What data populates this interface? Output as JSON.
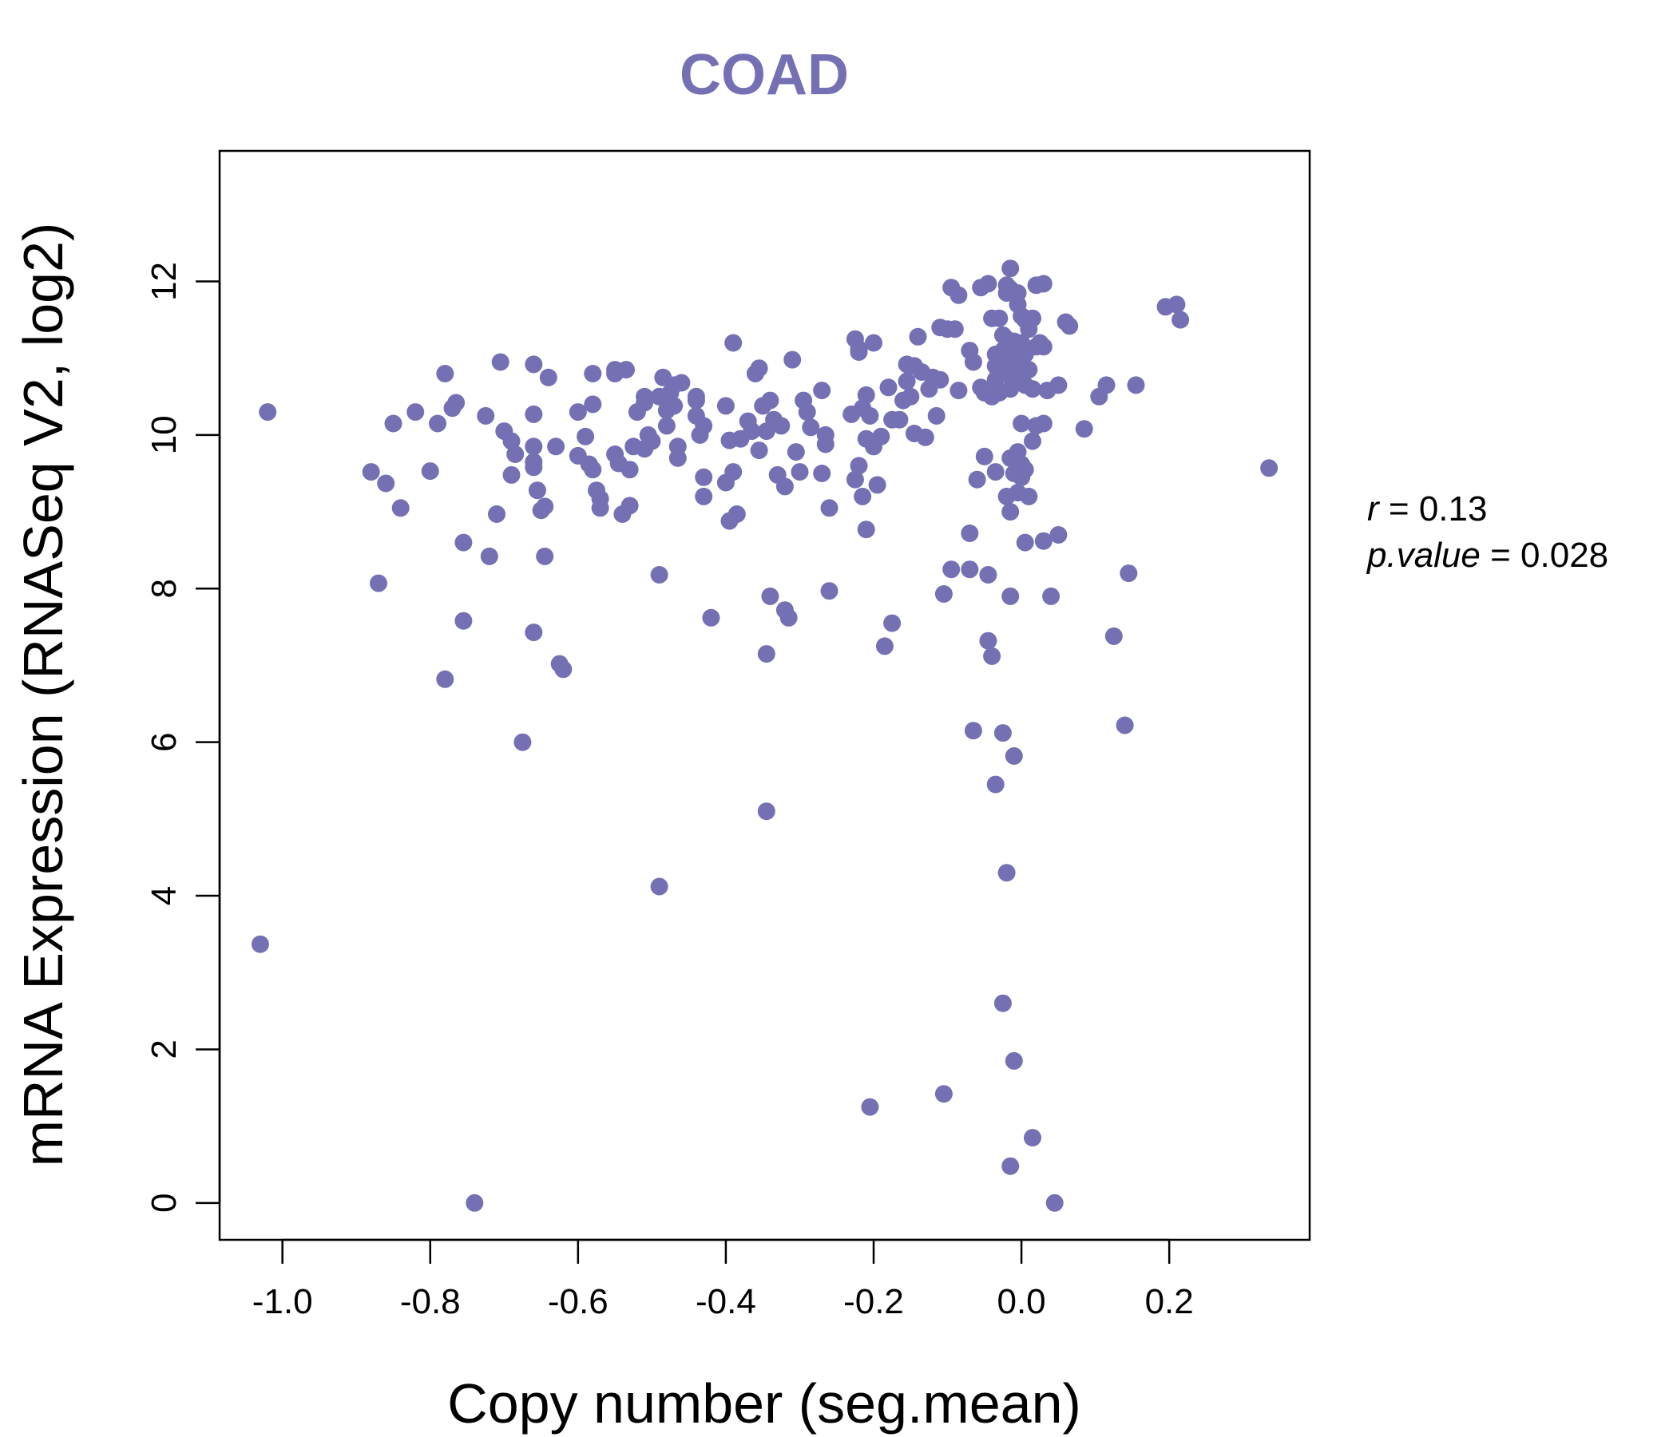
{
  "chart_data": {
    "type": "scatter",
    "title": "COAD",
    "xlabel": "Copy number (seg.mean)",
    "ylabel": "mRNA Expression (RNASeq V2, log2)",
    "xlim": [
      -1.085,
      0.39
    ],
    "ylim": [
      -0.48,
      13.7
    ],
    "xticks": [
      -1.0,
      -0.8,
      -0.6,
      -0.4,
      -0.2,
      0.0,
      0.2
    ],
    "xtick_labels": [
      "-1.0",
      "-0.8",
      "-0.6",
      "-0.4",
      "-0.2",
      "0.0",
      "0.2"
    ],
    "yticks": [
      0,
      2,
      4,
      6,
      8,
      10,
      12
    ],
    "ytick_labels": [
      "0",
      "2",
      "4",
      "6",
      "8",
      "10",
      "12"
    ],
    "grid": false,
    "stats": {
      "r_label": "r",
      "r_value": "0.13",
      "p_label": "p.value",
      "p_value": "0.028"
    },
    "color": "#7570b3",
    "points": [
      [
        -1.02,
        10.3
      ],
      [
        -1.03,
        3.37
      ],
      [
        -0.88,
        9.52
      ],
      [
        -0.87,
        8.07
      ],
      [
        -0.86,
        9.37
      ],
      [
        -0.85,
        10.15
      ],
      [
        -0.84,
        9.05
      ],
      [
        -0.82,
        10.3
      ],
      [
        -0.8,
        9.53
      ],
      [
        -0.79,
        10.15
      ],
      [
        -0.78,
        10.8
      ],
      [
        -0.78,
        6.82
      ],
      [
        -0.77,
        10.35
      ],
      [
        -0.765,
        10.42
      ],
      [
        -0.755,
        8.6
      ],
      [
        -0.755,
        7.58
      ],
      [
        -0.74,
        0.0
      ],
      [
        -0.725,
        10.25
      ],
      [
        -0.72,
        8.42
      ],
      [
        -0.71,
        8.97
      ],
      [
        -0.705,
        10.95
      ],
      [
        -0.7,
        10.05
      ],
      [
        -0.69,
        9.92
      ],
      [
        -0.69,
        9.48
      ],
      [
        -0.685,
        9.75
      ],
      [
        -0.675,
        6.0
      ],
      [
        -0.66,
        10.92
      ],
      [
        -0.66,
        10.27
      ],
      [
        -0.66,
        9.85
      ],
      [
        -0.66,
        9.65
      ],
      [
        -0.66,
        9.58
      ],
      [
        -0.66,
        7.43
      ],
      [
        -0.655,
        9.28
      ],
      [
        -0.65,
        9.02
      ],
      [
        -0.645,
        9.07
      ],
      [
        -0.645,
        8.42
      ],
      [
        -0.64,
        10.75
      ],
      [
        -0.63,
        9.85
      ],
      [
        -0.625,
        7.02
      ],
      [
        -0.62,
        6.95
      ],
      [
        -0.6,
        10.3
      ],
      [
        -0.6,
        9.73
      ],
      [
        -0.59,
        9.98
      ],
      [
        -0.585,
        9.62
      ],
      [
        -0.58,
        9.55
      ],
      [
        -0.58,
        10.8
      ],
      [
        -0.58,
        10.4
      ],
      [
        -0.575,
        9.28
      ],
      [
        -0.57,
        9.17
      ],
      [
        -0.57,
        9.05
      ],
      [
        -0.55,
        10.85
      ],
      [
        -0.55,
        10.8
      ],
      [
        -0.55,
        9.75
      ],
      [
        -0.545,
        9.63
      ],
      [
        -0.54,
        8.97
      ],
      [
        -0.535,
        10.85
      ],
      [
        -0.53,
        9.55
      ],
      [
        -0.53,
        9.08
      ],
      [
        -0.525,
        9.85
      ],
      [
        -0.52,
        10.3
      ],
      [
        -0.51,
        10.5
      ],
      [
        -0.51,
        10.42
      ],
      [
        -0.51,
        9.82
      ],
      [
        -0.505,
        10.0
      ],
      [
        -0.5,
        9.92
      ],
      [
        -0.49,
        10.5
      ],
      [
        -0.49,
        8.18
      ],
      [
        -0.49,
        4.12
      ],
      [
        -0.485,
        10.75
      ],
      [
        -0.48,
        10.32
      ],
      [
        -0.48,
        10.12
      ],
      [
        -0.475,
        10.55
      ],
      [
        -0.47,
        10.65
      ],
      [
        -0.47,
        10.38
      ],
      [
        -0.465,
        9.85
      ],
      [
        -0.465,
        9.7
      ],
      [
        -0.46,
        10.68
      ],
      [
        -0.44,
        10.45
      ],
      [
        -0.44,
        10.5
      ],
      [
        -0.44,
        10.25
      ],
      [
        -0.435,
        10.0
      ],
      [
        -0.43,
        9.45
      ],
      [
        -0.43,
        9.2
      ],
      [
        -0.43,
        10.12
      ],
      [
        -0.42,
        7.62
      ],
      [
        -0.4,
        10.38
      ],
      [
        -0.4,
        9.38
      ],
      [
        -0.395,
        9.93
      ],
      [
        -0.395,
        8.88
      ],
      [
        -0.39,
        11.2
      ],
      [
        -0.39,
        9.52
      ],
      [
        -0.385,
        8.97
      ],
      [
        -0.38,
        9.95
      ],
      [
        -0.37,
        10.18
      ],
      [
        -0.365,
        10.05
      ],
      [
        -0.36,
        10.8
      ],
      [
        -0.355,
        10.87
      ],
      [
        -0.355,
        9.8
      ],
      [
        -0.35,
        10.38
      ],
      [
        -0.345,
        10.05
      ],
      [
        -0.345,
        7.15
      ],
      [
        -0.345,
        5.1
      ],
      [
        -0.34,
        10.45
      ],
      [
        -0.34,
        7.9
      ],
      [
        -0.335,
        10.2
      ],
      [
        -0.33,
        9.48
      ],
      [
        -0.325,
        10.12
      ],
      [
        -0.32,
        9.33
      ],
      [
        -0.32,
        7.72
      ],
      [
        -0.315,
        7.62
      ],
      [
        -0.31,
        10.98
      ],
      [
        -0.305,
        9.78
      ],
      [
        -0.3,
        9.52
      ],
      [
        -0.295,
        10.45
      ],
      [
        -0.29,
        10.3
      ],
      [
        -0.285,
        10.1
      ],
      [
        -0.27,
        10.58
      ],
      [
        -0.27,
        9.5
      ],
      [
        -0.265,
        10.0
      ],
      [
        -0.265,
        9.88
      ],
      [
        -0.26,
        9.05
      ],
      [
        -0.26,
        7.97
      ],
      [
        -0.23,
        10.27
      ],
      [
        -0.225,
        11.25
      ],
      [
        -0.225,
        9.42
      ],
      [
        -0.22,
        11.12
      ],
      [
        -0.22,
        11.08
      ],
      [
        -0.22,
        9.6
      ],
      [
        -0.215,
        10.35
      ],
      [
        -0.215,
        9.2
      ],
      [
        -0.21,
        10.52
      ],
      [
        -0.21,
        9.95
      ],
      [
        -0.21,
        8.77
      ],
      [
        -0.205,
        10.25
      ],
      [
        -0.205,
        1.25
      ],
      [
        -0.2,
        11.2
      ],
      [
        -0.2,
        9.85
      ],
      [
        -0.195,
        9.35
      ],
      [
        -0.19,
        9.98
      ],
      [
        -0.185,
        7.25
      ],
      [
        -0.18,
        10.62
      ],
      [
        -0.175,
        10.2
      ],
      [
        -0.175,
        7.55
      ],
      [
        -0.165,
        10.2
      ],
      [
        -0.16,
        10.45
      ],
      [
        -0.155,
        10.92
      ],
      [
        -0.155,
        10.7
      ],
      [
        -0.15,
        10.5
      ],
      [
        -0.145,
        10.9
      ],
      [
        -0.145,
        10.02
      ],
      [
        -0.14,
        11.28
      ],
      [
        -0.135,
        10.82
      ],
      [
        -0.13,
        9.97
      ],
      [
        -0.125,
        10.6
      ],
      [
        -0.12,
        10.75
      ],
      [
        -0.115,
        10.25
      ],
      [
        -0.11,
        11.4
      ],
      [
        -0.11,
        10.72
      ],
      [
        -0.105,
        7.93
      ],
      [
        -0.105,
        1.42
      ],
      [
        -0.1,
        11.38
      ],
      [
        -0.095,
        11.92
      ],
      [
        -0.095,
        8.25
      ],
      [
        -0.09,
        11.38
      ],
      [
        -0.085,
        11.82
      ],
      [
        -0.085,
        10.58
      ],
      [
        -0.07,
        11.1
      ],
      [
        -0.07,
        8.72
      ],
      [
        -0.07,
        8.25
      ],
      [
        -0.065,
        10.95
      ],
      [
        -0.065,
        6.15
      ],
      [
        -0.06,
        9.42
      ],
      [
        -0.055,
        11.92
      ],
      [
        -0.055,
        10.62
      ],
      [
        -0.05,
        9.72
      ],
      [
        -0.05,
        10.55
      ],
      [
        -0.045,
        11.97
      ],
      [
        -0.045,
        8.18
      ],
      [
        -0.045,
        7.32
      ],
      [
        -0.04,
        11.52
      ],
      [
        -0.04,
        10.5
      ],
      [
        -0.04,
        7.12
      ],
      [
        -0.035,
        11.05
      ],
      [
        -0.035,
        10.9
      ],
      [
        -0.035,
        10.72
      ],
      [
        -0.035,
        9.52
      ],
      [
        -0.035,
        5.45
      ],
      [
        -0.03,
        11.52
      ],
      [
        -0.03,
        10.98
      ],
      [
        -0.03,
        10.55
      ],
      [
        -0.025,
        11.3
      ],
      [
        -0.025,
        11.1
      ],
      [
        -0.025,
        6.12
      ],
      [
        -0.025,
        2.6
      ],
      [
        -0.02,
        11.95
      ],
      [
        -0.02,
        11.85
      ],
      [
        -0.02,
        11.25
      ],
      [
        -0.02,
        10.8
      ],
      [
        -0.02,
        9.2
      ],
      [
        -0.02,
        4.3
      ],
      [
        -0.015,
        12.17
      ],
      [
        -0.015,
        11.9
      ],
      [
        -0.015,
        11.05
      ],
      [
        -0.015,
        10.6
      ],
      [
        -0.015,
        9.7
      ],
      [
        -0.015,
        9.0
      ],
      [
        -0.015,
        7.9
      ],
      [
        -0.015,
        0.48
      ],
      [
        -0.01,
        11.22
      ],
      [
        -0.01,
        10.9
      ],
      [
        -0.01,
        9.5
      ],
      [
        -0.01,
        5.82
      ],
      [
        -0.01,
        1.85
      ],
      [
        -0.005,
        11.7
      ],
      [
        -0.005,
        11.85
      ],
      [
        -0.005,
        11.15
      ],
      [
        -0.005,
        10.75
      ],
      [
        -0.005,
        9.78
      ],
      [
        -0.005,
        9.25
      ],
      [
        0.0,
        11.55
      ],
      [
        0.0,
        11.2
      ],
      [
        0.0,
        10.95
      ],
      [
        0.0,
        10.15
      ],
      [
        0.0,
        9.62
      ],
      [
        0.0,
        9.45
      ],
      [
        0.005,
        11.5
      ],
      [
        0.005,
        11.05
      ],
      [
        0.005,
        10.65
      ],
      [
        0.005,
        9.55
      ],
      [
        0.005,
        8.6
      ],
      [
        0.01,
        11.38
      ],
      [
        0.01,
        10.85
      ],
      [
        0.01,
        9.2
      ],
      [
        0.015,
        11.52
      ],
      [
        0.015,
        10.6
      ],
      [
        0.015,
        9.92
      ],
      [
        0.015,
        0.85
      ],
      [
        0.02,
        11.95
      ],
      [
        0.02,
        11.15
      ],
      [
        0.02,
        10.12
      ],
      [
        0.025,
        11.2
      ],
      [
        0.03,
        11.97
      ],
      [
        0.03,
        11.15
      ],
      [
        0.03,
        10.15
      ],
      [
        0.03,
        8.62
      ],
      [
        0.035,
        10.58
      ],
      [
        0.04,
        7.9
      ],
      [
        0.045,
        0.0
      ],
      [
        0.05,
        10.65
      ],
      [
        0.05,
        8.7
      ],
      [
        0.06,
        11.47
      ],
      [
        0.065,
        11.42
      ],
      [
        0.085,
        10.08
      ],
      [
        0.105,
        10.5
      ],
      [
        0.115,
        10.65
      ],
      [
        0.125,
        7.38
      ],
      [
        0.14,
        6.22
      ],
      [
        0.145,
        8.2
      ],
      [
        0.155,
        10.65
      ],
      [
        0.195,
        11.67
      ],
      [
        0.21,
        11.7
      ],
      [
        0.215,
        11.5
      ],
      [
        0.335,
        9.57
      ]
    ]
  }
}
